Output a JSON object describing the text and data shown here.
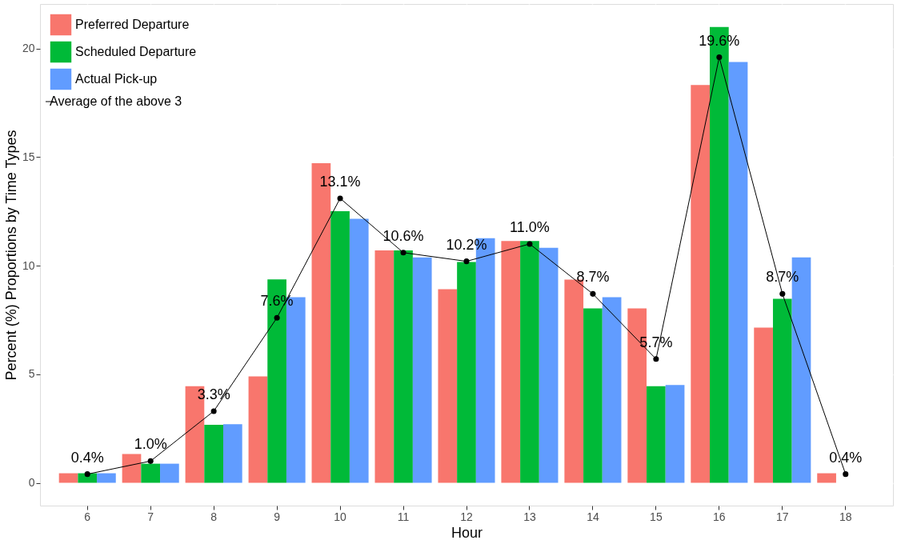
{
  "chart_data": {
    "type": "bar",
    "xlabel": "Hour",
    "ylabel": "Percent (%) Proportions by Time Types",
    "categories": [
      "6",
      "7",
      "8",
      "9",
      "10",
      "11",
      "12",
      "13",
      "14",
      "15",
      "16",
      "17",
      "18"
    ],
    "series": [
      {
        "name": "Preferred Departure",
        "color": "#f8766d",
        "values": [
          0.44,
          1.33,
          4.45,
          4.9,
          14.72,
          10.7,
          8.92,
          11.14,
          9.36,
          8.03,
          18.32,
          7.15,
          0.44
        ]
      },
      {
        "name": "Scheduled Departure",
        "color": "#00ba38",
        "values": [
          0.44,
          0.88,
          2.67,
          9.37,
          12.51,
          10.7,
          10.17,
          11.14,
          8.03,
          4.45,
          20.99,
          8.47,
          0
        ]
      },
      {
        "name": "Actual Pick-up",
        "color": "#619cff",
        "values": [
          0.44,
          0.88,
          2.7,
          8.55,
          12.16,
          10.38,
          11.26,
          10.82,
          8.55,
          4.5,
          19.38,
          10.38,
          0
        ]
      },
      {
        "name": "Average of the above 3",
        "type": "line",
        "color": "#000000",
        "values": [
          0.4,
          1.0,
          3.3,
          7.6,
          13.1,
          10.6,
          10.2,
          11.0,
          8.7,
          5.7,
          19.6,
          8.7,
          0.4
        ],
        "value_labels": [
          "0.4%",
          "1.0%",
          "3.3%",
          "7.6%",
          "13.1%",
          "10.6%",
          "10.2%",
          "11.0%",
          "8.7%",
          "5.7%",
          "19.6%",
          "8.7%",
          "0.4%"
        ]
      }
    ],
    "ylim": [
      -1.05,
      22.05
    ],
    "yticks": [
      0,
      5,
      10,
      15,
      20
    ],
    "grid": true,
    "legend": "top left",
    "marker": "circle",
    "line_style": "solid"
  }
}
